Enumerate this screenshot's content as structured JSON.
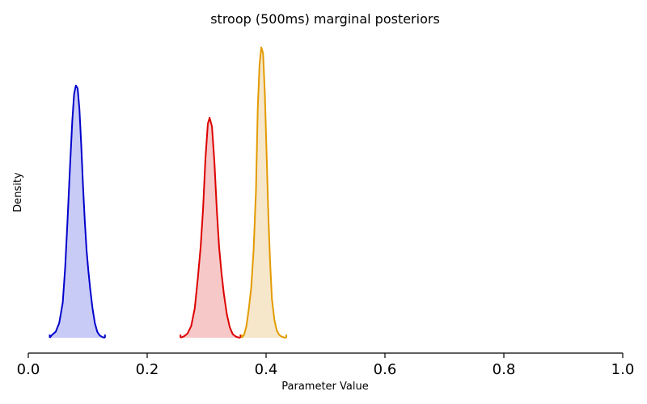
{
  "chart_data": {
    "type": "area",
    "title": "stroop (500ms) marginal posteriors",
    "xlabel": "Parameter Value",
    "ylabel": "Density",
    "xlim": [
      0.0,
      1.0
    ],
    "ylim": [
      0,
      1.0
    ],
    "xticks": [
      "0.0",
      "0.2",
      "0.4",
      "0.6",
      "0.8",
      "1.0"
    ],
    "grid": false,
    "legend": "none",
    "series": [
      {
        "color": "#0000cc",
        "fill": "#c9cbf7",
        "x": [
          0.036,
          0.04,
          0.046,
          0.052,
          0.058,
          0.062,
          0.066,
          0.07,
          0.074,
          0.077,
          0.08,
          0.083,
          0.086,
          0.089,
          0.092,
          0.095,
          0.098,
          0.101,
          0.104,
          0.108,
          0.112,
          0.116,
          0.12,
          0.125,
          0.129
        ],
        "y": [
          0.0,
          0.01,
          0.02,
          0.05,
          0.12,
          0.24,
          0.4,
          0.58,
          0.74,
          0.83,
          0.86,
          0.85,
          0.78,
          0.66,
          0.52,
          0.4,
          0.3,
          0.23,
          0.17,
          0.1,
          0.05,
          0.02,
          0.008,
          0.002,
          0.0
        ]
      },
      {
        "color": "#dd0000",
        "fill": "#f6c8c8",
        "x": [
          0.256,
          0.262,
          0.268,
          0.274,
          0.28,
          0.285,
          0.29,
          0.294,
          0.298,
          0.302,
          0.305,
          0.309,
          0.313,
          0.317,
          0.321,
          0.325,
          0.329,
          0.334,
          0.339,
          0.344,
          0.349,
          0.353,
          0.357
        ],
        "y": [
          0.0,
          0.005,
          0.015,
          0.04,
          0.1,
          0.2,
          0.31,
          0.44,
          0.61,
          0.73,
          0.75,
          0.72,
          0.6,
          0.44,
          0.31,
          0.22,
          0.15,
          0.08,
          0.035,
          0.012,
          0.004,
          0.001,
          0.0
        ]
      },
      {
        "color": "#e39b00",
        "fill": "#f6e7cb",
        "x": [
          0.359,
          0.363,
          0.367,
          0.371,
          0.375,
          0.379,
          0.383,
          0.386,
          0.389,
          0.392,
          0.395,
          0.398,
          0.401,
          0.404,
          0.407,
          0.41,
          0.414,
          0.418,
          0.422,
          0.426,
          0.43,
          0.434
        ],
        "y": [
          0.0,
          0.01,
          0.04,
          0.1,
          0.17,
          0.3,
          0.5,
          0.78,
          0.93,
          0.99,
          0.97,
          0.83,
          0.62,
          0.41,
          0.25,
          0.13,
          0.06,
          0.025,
          0.01,
          0.004,
          0.001,
          0.0
        ]
      }
    ]
  }
}
